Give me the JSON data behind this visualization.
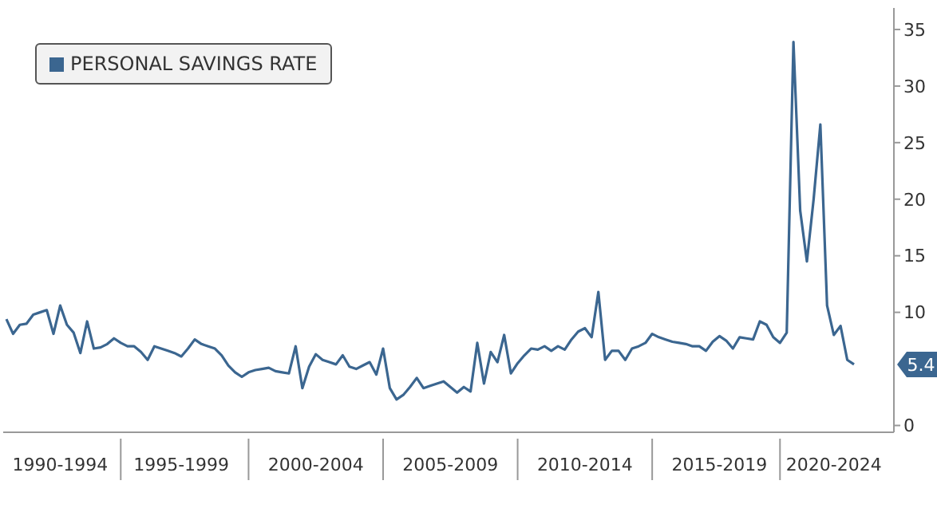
{
  "chart_data": {
    "type": "line",
    "legend": "top left",
    "ylim": [
      -0.6,
      36.9
    ],
    "yticks": [
      0,
      10,
      15,
      20,
      25,
      30,
      35
    ],
    "categories": [
      null,
      null,
      null,
      null,
      null,
      null,
      null,
      null,
      "1990-1994",
      null,
      null,
      null,
      null,
      null,
      null,
      null,
      null,
      null,
      null,
      null,
      null,
      null,
      null,
      null,
      null,
      null,
      "1995-1999",
      null,
      null,
      null,
      null,
      null,
      null,
      null,
      null,
      null,
      null,
      null,
      null,
      null,
      null,
      null,
      null,
      null,
      null,
      null,
      "2000-2004",
      null,
      null,
      null,
      null,
      null,
      null,
      null,
      null,
      null,
      null,
      null,
      null,
      null,
      null,
      null,
      null,
      null,
      null,
      null,
      "2005-2009",
      null,
      null,
      null,
      null,
      null,
      null,
      null,
      null,
      null,
      null,
      null,
      null,
      null,
      null,
      null,
      null,
      null,
      null,
      null,
      "2010-2014",
      null,
      null,
      null,
      null,
      null,
      null,
      null,
      null,
      null,
      null,
      null,
      null,
      null,
      null,
      null,
      null,
      null,
      null,
      null,
      "2015-2019",
      null,
      null,
      null,
      null,
      null,
      null,
      null,
      null,
      null,
      null,
      null,
      null,
      null,
      null,
      null,
      null,
      "2020-2024",
      null,
      null,
      null
    ],
    "annotations": [
      "5.4"
    ],
    "series": [
      {
        "name": "PERSONAL SAVINGS RATE",
        "color": "#3b6690",
        "values": [
          9.4,
          8.1,
          8.9,
          9.0,
          9.8,
          10.0,
          10.2,
          8.1,
          10.6,
          8.9,
          8.2,
          6.4,
          9.2,
          6.8,
          6.9,
          7.2,
          7.7,
          7.3,
          7.0,
          7.0,
          6.5,
          5.8,
          7.0,
          6.8,
          6.6,
          6.4,
          6.1,
          6.8,
          7.6,
          7.2,
          7.0,
          6.8,
          6.2,
          5.3,
          4.7,
          4.3,
          4.7,
          4.9,
          5.0,
          5.1,
          4.8,
          4.7,
          4.6,
          7.0,
          3.3,
          5.2,
          6.3,
          5.8,
          5.6,
          5.4,
          6.2,
          5.2,
          5.0,
          5.3,
          5.6,
          4.5,
          6.8,
          3.3,
          2.3,
          2.7,
          3.4,
          4.2,
          3.3,
          3.5,
          3.7,
          3.9,
          3.4,
          2.9,
          3.4,
          3.0,
          7.3,
          3.7,
          6.5,
          5.6,
          8.0,
          4.6,
          5.5,
          6.2,
          6.8,
          6.7,
          7.0,
          6.6,
          7.0,
          6.7,
          7.6,
          8.3,
          8.6,
          7.8,
          11.8,
          5.8,
          6.6,
          6.6,
          5.8,
          6.8,
          7.0,
          7.3,
          8.1,
          7.8,
          7.6,
          7.4,
          7.3,
          7.2,
          7.0,
          7.0,
          6.6,
          7.4,
          7.9,
          7.5,
          6.8,
          7.8,
          7.7,
          7.6,
          9.2,
          8.9,
          7.8,
          7.3,
          8.2,
          33.9,
          19.0,
          14.5,
          20.0,
          26.6,
          10.6,
          8.0,
          8.8,
          5.8,
          5.4
        ]
      }
    ]
  }
}
